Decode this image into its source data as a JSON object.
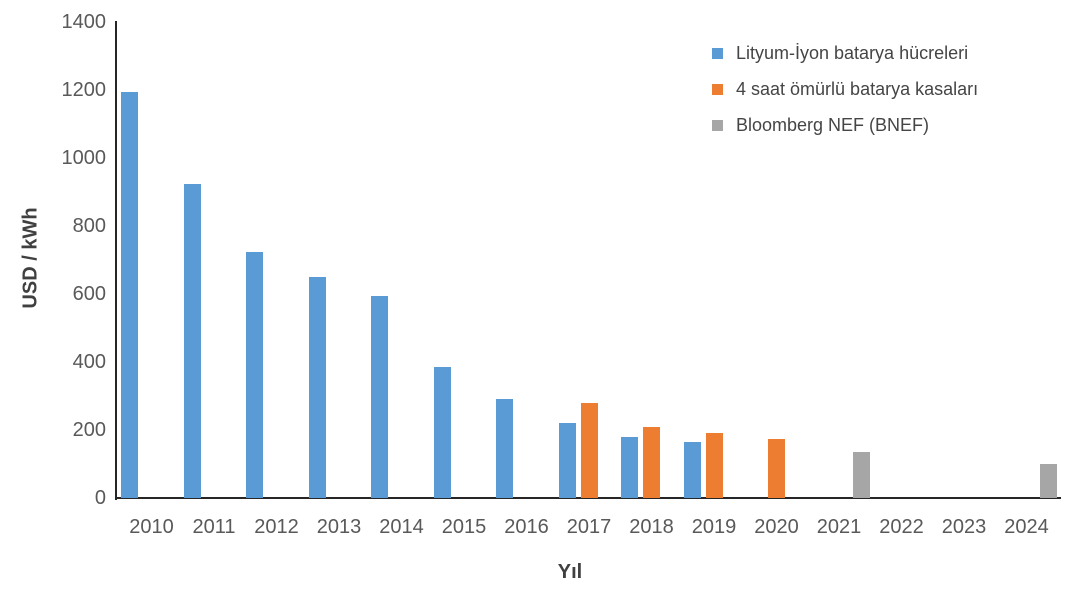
{
  "chart_data": {
    "type": "bar",
    "title": "",
    "xlabel": "Yıl",
    "ylabel": "USD / kWh",
    "ylim": [
      0,
      1400
    ],
    "ytick_step": 200,
    "grid": false,
    "legend_position": "top-right",
    "categories": [
      "2010",
      "2011",
      "2012",
      "2013",
      "2014",
      "2015",
      "2016",
      "2017",
      "2018",
      "2019",
      "2020",
      "2021",
      "2022",
      "2023",
      "2024"
    ],
    "series": [
      {
        "key": "cells",
        "name": "Lityum-İyon batarya hücreleri",
        "color": "#5B9BD5",
        "values": [
          1195,
          925,
          725,
          650,
          595,
          385,
          290,
          220,
          180,
          165,
          null,
          null,
          null,
          null,
          null
        ]
      },
      {
        "key": "cases",
        "name": "4 saat ömürlü batarya kasaları",
        "color": "#ED7D31",
        "values": [
          null,
          null,
          null,
          null,
          null,
          null,
          null,
          280,
          210,
          190,
          175,
          null,
          null,
          null,
          null
        ]
      },
      {
        "key": "bnef",
        "name": "Bloomberg NEF (BNEF)",
        "color": "#A6A6A6",
        "values": [
          null,
          null,
          null,
          null,
          null,
          null,
          null,
          null,
          null,
          null,
          null,
          135,
          null,
          null,
          100
        ]
      }
    ]
  }
}
